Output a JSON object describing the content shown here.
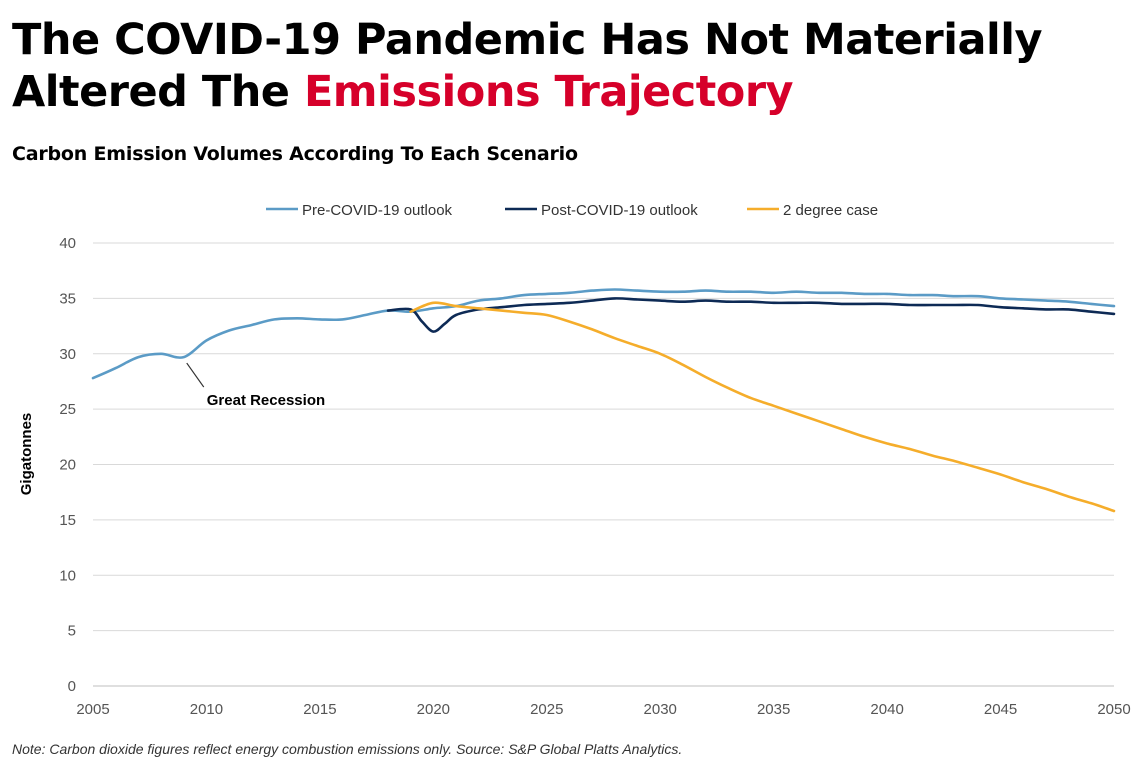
{
  "headline": {
    "line1": "The COVID-19 Pandemic Has Not Materially",
    "line2_prefix": "Altered The ",
    "line2_accent": "Emissions Trajectory"
  },
  "colors": {
    "accent": "#d6002a",
    "pre_covid": "#5b9bc6",
    "post_covid": "#0d2a55",
    "two_degree": "#f5ad2b",
    "grid": "#d9d9d9"
  },
  "note": "Note: Carbon dioxide figures reflect energy combustion emissions only. Source: S&P Global Platts Analytics.",
  "chart_data": {
    "type": "line",
    "title": "Carbon Emission Volumes According To Each Scenario",
    "xlabel": "",
    "ylabel": "Gigatonnes",
    "xlim": [
      2005,
      2050
    ],
    "ylim": [
      0,
      40
    ],
    "x_ticks": [
      2005,
      2010,
      2015,
      2020,
      2025,
      2030,
      2035,
      2040,
      2045,
      2050
    ],
    "y_ticks": [
      0,
      5,
      10,
      15,
      20,
      25,
      30,
      35,
      40
    ],
    "grid": "horizontal",
    "legend_position": "top-center",
    "series": [
      {
        "name": "Pre-COVID-19 outlook",
        "color": "#5b9bc6",
        "points": [
          [
            2005,
            27.8
          ],
          [
            2006,
            28.7
          ],
          [
            2007,
            29.7
          ],
          [
            2008,
            30.0
          ],
          [
            2009,
            29.7
          ],
          [
            2010,
            31.2
          ],
          [
            2011,
            32.1
          ],
          [
            2012,
            32.6
          ],
          [
            2013,
            33.1
          ],
          [
            2014,
            33.2
          ],
          [
            2015,
            33.1
          ],
          [
            2016,
            33.1
          ],
          [
            2017,
            33.5
          ],
          [
            2018,
            33.9
          ],
          [
            2019,
            33.8
          ],
          [
            2020,
            34.1
          ],
          [
            2021,
            34.3
          ],
          [
            2022,
            34.8
          ],
          [
            2023,
            35.0
          ],
          [
            2024,
            35.3
          ],
          [
            2025,
            35.4
          ],
          [
            2026,
            35.5
          ],
          [
            2027,
            35.7
          ],
          [
            2028,
            35.8
          ],
          [
            2029,
            35.7
          ],
          [
            2030,
            35.6
          ],
          [
            2031,
            35.6
          ],
          [
            2032,
            35.7
          ],
          [
            2033,
            35.6
          ],
          [
            2034,
            35.6
          ],
          [
            2035,
            35.5
          ],
          [
            2036,
            35.6
          ],
          [
            2037,
            35.5
          ],
          [
            2038,
            35.5
          ],
          [
            2039,
            35.4
          ],
          [
            2040,
            35.4
          ],
          [
            2041,
            35.3
          ],
          [
            2042,
            35.3
          ],
          [
            2043,
            35.2
          ],
          [
            2044,
            35.2
          ],
          [
            2045,
            35.0
          ],
          [
            2046,
            34.9
          ],
          [
            2047,
            34.8
          ],
          [
            2048,
            34.7
          ],
          [
            2049,
            34.5
          ],
          [
            2050,
            34.3
          ]
        ]
      },
      {
        "name": "Post-COVID-19 outlook",
        "color": "#0d2a55",
        "points": [
          [
            2018,
            33.9
          ],
          [
            2019,
            34.0
          ],
          [
            2019.5,
            32.9
          ],
          [
            2020,
            32.0
          ],
          [
            2020.5,
            32.7
          ],
          [
            2021,
            33.5
          ],
          [
            2022,
            34.0
          ],
          [
            2023,
            34.2
          ],
          [
            2024,
            34.4
          ],
          [
            2025,
            34.5
          ],
          [
            2026,
            34.6
          ],
          [
            2027,
            34.8
          ],
          [
            2028,
            35.0
          ],
          [
            2029,
            34.9
          ],
          [
            2030,
            34.8
          ],
          [
            2031,
            34.7
          ],
          [
            2032,
            34.8
          ],
          [
            2033,
            34.7
          ],
          [
            2034,
            34.7
          ],
          [
            2035,
            34.6
          ],
          [
            2036,
            34.6
          ],
          [
            2037,
            34.6
          ],
          [
            2038,
            34.5
          ],
          [
            2039,
            34.5
          ],
          [
            2040,
            34.5
          ],
          [
            2041,
            34.4
          ],
          [
            2042,
            34.4
          ],
          [
            2043,
            34.4
          ],
          [
            2044,
            34.4
          ],
          [
            2045,
            34.2
          ],
          [
            2046,
            34.1
          ],
          [
            2047,
            34.0
          ],
          [
            2048,
            34.0
          ],
          [
            2049,
            33.8
          ],
          [
            2050,
            33.6
          ]
        ]
      },
      {
        "name": "2 degree case",
        "color": "#f5ad2b",
        "points": [
          [
            2019,
            33.8
          ],
          [
            2020,
            34.6
          ],
          [
            2021,
            34.3
          ],
          [
            2022,
            34.1
          ],
          [
            2023,
            33.9
          ],
          [
            2024,
            33.7
          ],
          [
            2025,
            33.5
          ],
          [
            2026,
            32.9
          ],
          [
            2027,
            32.2
          ],
          [
            2028,
            31.4
          ],
          [
            2029,
            30.7
          ],
          [
            2030,
            30.0
          ],
          [
            2031,
            29.0
          ],
          [
            2032,
            27.9
          ],
          [
            2033,
            26.9
          ],
          [
            2034,
            26.0
          ],
          [
            2035,
            25.3
          ],
          [
            2036,
            24.6
          ],
          [
            2037,
            23.9
          ],
          [
            2038,
            23.2
          ],
          [
            2039,
            22.5
          ],
          [
            2040,
            21.9
          ],
          [
            2041,
            21.4
          ],
          [
            2042,
            20.8
          ],
          [
            2043,
            20.3
          ],
          [
            2044,
            19.7
          ],
          [
            2045,
            19.1
          ],
          [
            2046,
            18.4
          ],
          [
            2047,
            17.8
          ],
          [
            2048,
            17.1
          ],
          [
            2049,
            16.5
          ],
          [
            2050,
            15.8
          ]
        ]
      }
    ],
    "annotations": [
      {
        "text": "Great Recession",
        "x": 2009,
        "y": 29.7
      }
    ]
  }
}
